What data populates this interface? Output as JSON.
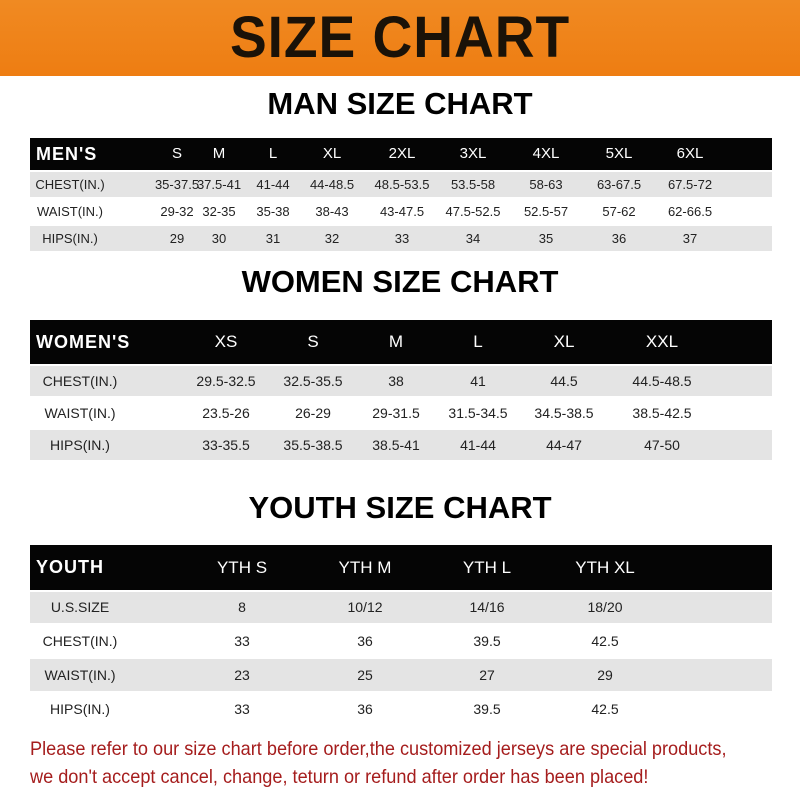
{
  "banner_title": "SIZE CHART",
  "tables": [
    {
      "title": "MAN SIZE CHART",
      "header_label": "MEN'S",
      "sizes": [
        "S",
        "M",
        "L",
        "XL",
        "2XL",
        "3XL",
        "4XL",
        "5XL",
        "6XL"
      ],
      "rows": [
        {
          "label": "CHEST(IN.)",
          "values": [
            "35-37.5",
            "37.5-41",
            "41-44",
            "44-48.5",
            "48.5-53.5",
            "53.5-58",
            "58-63",
            "63-67.5",
            "67.5-72"
          ]
        },
        {
          "label": "WAIST(IN.)",
          "values": [
            "29-32",
            "32-35",
            "35-38",
            "38-43",
            "43-47.5",
            "47.5-52.5",
            "52.5-57",
            "57-62",
            "62-66.5"
          ]
        },
        {
          "label": "HIPS(IN.)",
          "values": [
            "29",
            "30",
            "31",
            "32",
            "33",
            "34",
            "35",
            "36",
            "37"
          ]
        }
      ]
    },
    {
      "title": "WOMEN SIZE CHART",
      "header_label": "WOMEN'S",
      "sizes": [
        "XS",
        "S",
        "M",
        "L",
        "XL",
        "XXL"
      ],
      "rows": [
        {
          "label": "CHEST(IN.)",
          "values": [
            "29.5-32.5",
            "32.5-35.5",
            "38",
            "41",
            "44.5",
            "44.5-48.5"
          ]
        },
        {
          "label": "WAIST(IN.)",
          "values": [
            "23.5-26",
            "26-29",
            "29-31.5",
            "31.5-34.5",
            "34.5-38.5",
            "38.5-42.5"
          ]
        },
        {
          "label": "HIPS(IN.)",
          "values": [
            "33-35.5",
            "35.5-38.5",
            "38.5-41",
            "41-44",
            "44-47",
            "47-50"
          ]
        }
      ]
    },
    {
      "title": "YOUTH SIZE CHART",
      "header_label": "YOUTH",
      "sizes": [
        "YTH S",
        "YTH M",
        "YTH L",
        "YTH XL"
      ],
      "rows": [
        {
          "label": "U.S.SIZE",
          "values": [
            "8",
            "10/12",
            "14/16",
            "18/20"
          ]
        },
        {
          "label": "CHEST(IN.)",
          "values": [
            "33",
            "36",
            "39.5",
            "42.5"
          ]
        },
        {
          "label": "WAIST(IN.)",
          "values": [
            "23",
            "25",
            "27",
            "29"
          ]
        },
        {
          "label": "HIPS(IN.)",
          "values": [
            "33",
            "36",
            "39.5",
            "42.5"
          ]
        }
      ]
    }
  ],
  "notice": [
    "Please refer to our size chart before order,the customized jerseys are special products,",
    "we don't accept cancel, change, teturn or refund after order has been placed!"
  ],
  "colors": {
    "banner": "#ee7d12",
    "header_row": "#050505",
    "stripe": "#e4e4e4",
    "notice": "#a51d1d"
  }
}
